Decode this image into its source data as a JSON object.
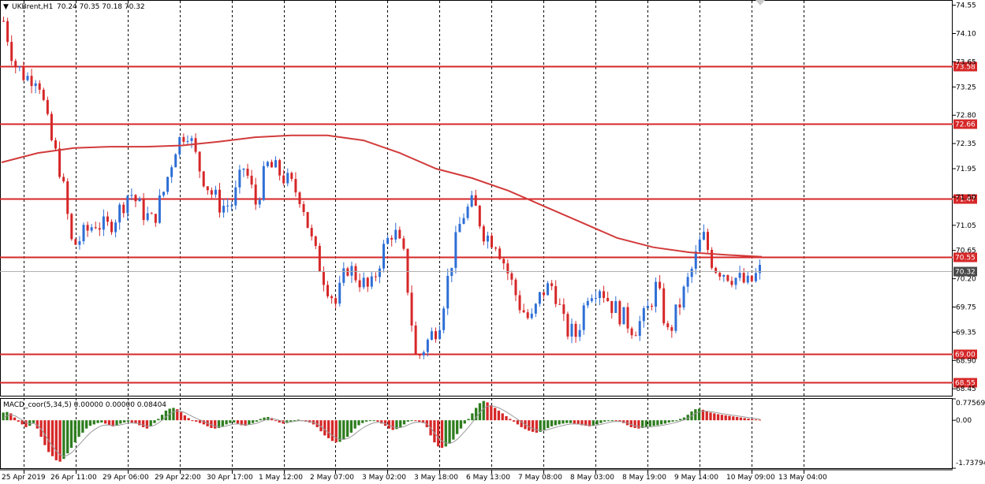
{
  "header": {
    "symbol_label": "UKBrent,H1",
    "ohlc_label": "70.24 70.35 70.18 70.32"
  },
  "indicator": {
    "label": "MACD_coor(5,34,5) 0.00000 0.00000 0.08404"
  },
  "colors": {
    "bull": "#2f6fd6",
    "bear": "#d62728",
    "level_line": "#d62728",
    "ma_line": "#d23b3b",
    "macd_pos_green": "#2e7d1f",
    "macd_neg_red": "#d62728",
    "grid": "#000000",
    "current_price_bg": "#4a4a4a"
  },
  "chart_data": [
    {
      "type": "candlestick",
      "title": "",
      "price_axis": {
        "range": [
          68.34,
          74.62
        ],
        "tick_labels": [
          "74.55",
          "74.10",
          "73.65",
          "73.25",
          "72.80",
          "72.35",
          "71.95",
          "71.50",
          "71.05",
          "70.65",
          "70.20",
          "69.75",
          "69.35",
          "68.90",
          "68.45"
        ]
      },
      "time_axis": {
        "tick_labels": [
          "25 Apr 2019",
          "26 Apr 11:00",
          "29 Apr 06:00",
          "29 Apr 22:00",
          "30 Apr 17:00",
          "1 May 12:00",
          "2 May 07:00",
          "3 May 02:00",
          "3 May 18:00",
          "6 May 13:00",
          "7 May 08:00",
          "8 May 03:00",
          "8 May 19:00",
          "9 May 14:00",
          "10 May 09:00",
          "13 May 04:00"
        ]
      },
      "grid": "vertical dashed",
      "horizontal_levels": [
        "73.58",
        "72.66",
        "71.47",
        "70.55",
        "69.00",
        "68.55"
      ],
      "current_price": "70.32",
      "moving_average": [
        72.05,
        72.2,
        72.28,
        72.3,
        72.3,
        72.32,
        72.38,
        72.45,
        72.48,
        72.48,
        72.4,
        72.2,
        71.95,
        71.8,
        71.6,
        71.35,
        71.1,
        70.85,
        70.7,
        70.62,
        70.58,
        70.55
      ],
      "close_path": [
        74.3,
        73.6,
        73.4,
        73.45,
        72.5,
        71.9,
        70.7,
        70.9,
        71.1,
        71.0,
        71.25,
        71.6,
        71.3,
        71.1,
        71.6,
        72.3,
        72.6,
        72.0,
        71.6,
        71.35,
        71.4,
        72.0,
        71.4,
        72.0,
        71.9,
        71.7,
        71.5,
        70.7,
        70.2,
        69.8,
        70.4,
        70.2,
        70.0,
        70.6,
        71.0,
        70.5,
        68.9,
        69.2,
        69.5,
        70.4,
        71.2,
        71.4,
        70.9,
        70.8,
        70.3,
        69.8,
        69.5,
        70.0,
        70.1,
        69.4,
        69.3,
        70.0,
        70.1,
        69.8,
        69.6,
        69.4,
        69.6,
        70.1,
        69.3,
        69.8,
        70.3,
        70.9,
        70.4,
        70.3,
        70.2,
        70.1,
        70.32
      ]
    },
    {
      "type": "bar",
      "title": "MACD_coor(5,34,5)",
      "value_axis": {
        "range": [
          -1.73794,
          0.77569
        ],
        "tick_labels": [
          "0.77569",
          "0.00",
          "-1.73794"
        ]
      },
      "values": [
        0.28,
        0.3,
        0.25,
        0.1,
        -0.05,
        -0.15,
        -0.25,
        -0.2,
        -0.1,
        -0.3,
        -0.6,
        -0.9,
        -1.15,
        -1.3,
        -1.45,
        -1.5,
        -1.4,
        -1.2,
        -1.0,
        -0.8,
        -0.6,
        -0.45,
        -0.3,
        -0.2,
        -0.15,
        -0.1,
        -0.08,
        -0.12,
        -0.18,
        -0.22,
        -0.18,
        -0.12,
        -0.08,
        -0.05,
        -0.08,
        -0.12,
        -0.18,
        -0.25,
        -0.3,
        -0.22,
        -0.1,
        0.05,
        0.2,
        0.35,
        0.42,
        0.45,
        0.4,
        0.3,
        0.18,
        0.08,
        0.0,
        -0.05,
        -0.1,
        -0.15,
        -0.22,
        -0.28,
        -0.3,
        -0.28,
        -0.22,
        -0.15,
        -0.1,
        -0.08,
        -0.12,
        -0.18,
        -0.2,
        -0.15,
        -0.1,
        -0.05,
        0.05,
        0.1,
        0.12,
        0.08,
        0.0,
        -0.08,
        -0.12,
        -0.1,
        -0.05,
        0.0,
        0.02,
        -0.02,
        -0.05,
        -0.08,
        -0.15,
        -0.25,
        -0.4,
        -0.55,
        -0.65,
        -0.75,
        -0.8,
        -0.78,
        -0.7,
        -0.6,
        -0.45,
        -0.3,
        -0.18,
        -0.1,
        -0.05,
        -0.02,
        0.0,
        -0.05,
        -0.12,
        -0.2,
        -0.3,
        -0.35,
        -0.32,
        -0.25,
        -0.15,
        -0.05,
        0.0,
        -0.02,
        -0.05,
        -0.1,
        -0.25,
        -0.55,
        -0.8,
        -0.95,
        -1.0,
        -0.95,
        -0.85,
        -0.7,
        -0.5,
        -0.3,
        -0.12,
        0.05,
        0.25,
        0.45,
        0.62,
        0.7,
        0.65,
        0.55,
        0.45,
        0.35,
        0.25,
        0.15,
        0.05,
        -0.05,
        -0.15,
        -0.25,
        -0.32,
        -0.38,
        -0.42,
        -0.45,
        -0.42,
        -0.35,
        -0.28,
        -0.22,
        -0.18,
        -0.15,
        -0.12,
        -0.1,
        -0.1,
        -0.12,
        -0.15,
        -0.18,
        -0.2,
        -0.22,
        -0.2,
        -0.15,
        -0.1,
        -0.05,
        -0.02,
        0.0,
        -0.02,
        -0.05,
        -0.1,
        -0.18,
        -0.25,
        -0.28,
        -0.3,
        -0.28,
        -0.25,
        -0.22,
        -0.2,
        -0.18,
        -0.15,
        -0.12,
        -0.08,
        -0.05,
        0.0,
        0.05,
        0.1,
        0.2,
        0.32,
        0.4,
        0.42,
        0.38,
        0.32,
        0.28,
        0.25,
        0.22,
        0.2,
        0.18,
        0.16,
        0.14,
        0.12,
        0.1,
        0.08,
        0.06,
        0.04,
        0.03,
        0.02
      ]
    }
  ]
}
